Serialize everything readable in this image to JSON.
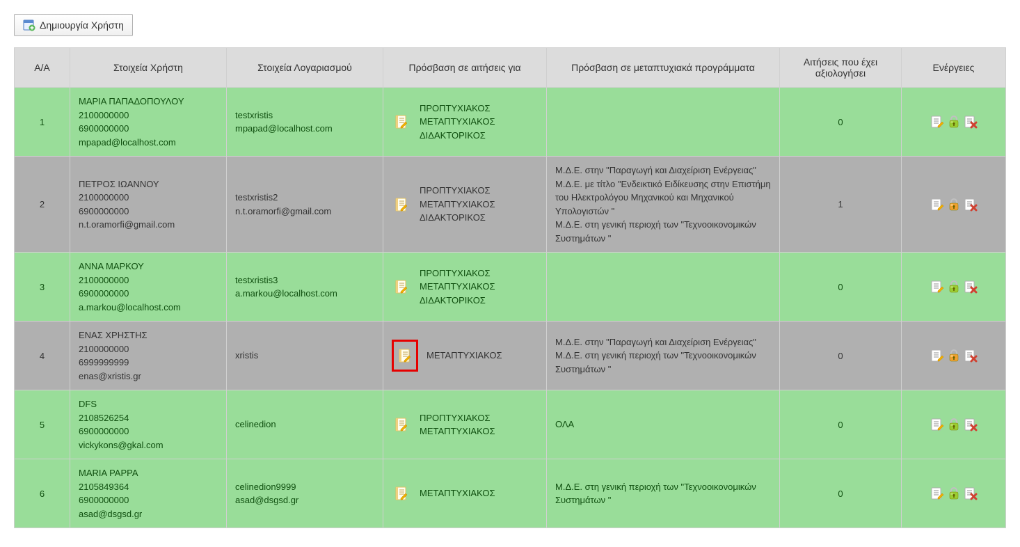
{
  "createButton": {
    "label": "Δημιουργία Χρήστη"
  },
  "columns": {
    "aa": "Α/Α",
    "user": "Στοιχεία Χρήστη",
    "account": "Στοιχεία Λογαριασμού",
    "access": "Πρόσβαση σε αιτήσεις για",
    "programs": "Πρόσβαση σε μεταπτυχιακά προγράμματα",
    "evaluated": "Αιτήσεις που έχει αξιολογήσει",
    "actions": "Ενέργειες"
  },
  "rows": [
    {
      "aa": "1",
      "rowClass": "row-green",
      "user": [
        "ΜΑΡΙΑ ΠΑΠΑΔΟΠΟΥΛΟΥ",
        "2100000000",
        "6900000000",
        "mpapad@localhost.com"
      ],
      "account": [
        "testxristis",
        "mpapad@localhost.com"
      ],
      "accessTypes": [
        "ΠΡΟΠΤΥΧΙΑΚΟΣ",
        "ΜΕΤΑΠΤΥΧΙΑΚΟΣ",
        "ΔΙΔΑΚΤΟΡΙΚΟΣ"
      ],
      "accessHighlighted": false,
      "programs": [],
      "evaluated": "0",
      "lockColor": "green"
    },
    {
      "aa": "2",
      "rowClass": "row-gray",
      "user": [
        "ΠΕΤΡΟΣ ΙΩΑΝΝΟΥ",
        "2100000000",
        "6900000000",
        "n.t.oramorfi@gmail.com"
      ],
      "account": [
        "testxristis2",
        "n.t.oramorfi@gmail.com"
      ],
      "accessTypes": [
        "ΠΡΟΠΤΥΧΙΑΚΟΣ",
        "ΜΕΤΑΠΤΥΧΙΑΚΟΣ",
        "ΔΙΔΑΚΤΟΡΙΚΟΣ"
      ],
      "accessHighlighted": false,
      "programs": [
        "Μ.Δ.Ε. στην \"Παραγωγή και Διαχείριση Ενέργειας\"",
        "Μ.Δ.Ε. με τίτλο \"Ενδεικτικό Ειδίκευσης στην Επιστήμη του Ηλεκτρολόγου Μηχανικού και Μηχανικού Υπολογιστών \"",
        "Μ.Δ.Ε. στη γενική περιοχή των \"Τεχνοοικονομικών Συστημάτων \""
      ],
      "evaluated": "1",
      "lockColor": "orange"
    },
    {
      "aa": "3",
      "rowClass": "row-green",
      "user": [
        "ΑΝΝΑ ΜΑΡΚΟΥ",
        "2100000000",
        "6900000000",
        "a.markou@localhost.com"
      ],
      "account": [
        "testxristis3",
        "a.markou@localhost.com"
      ],
      "accessTypes": [
        "ΠΡΟΠΤΥΧΙΑΚΟΣ",
        "ΜΕΤΑΠΤΥΧΙΑΚΟΣ",
        "ΔΙΔΑΚΤΟΡΙΚΟΣ"
      ],
      "accessHighlighted": false,
      "programs": [],
      "evaluated": "0",
      "lockColor": "green"
    },
    {
      "aa": "4",
      "rowClass": "row-gray",
      "user": [
        "ΕΝΑΣ ΧΡΗΣΤΗΣ",
        "2100000000",
        "6999999999",
        "enas@xristis.gr"
      ],
      "account": [
        "xristis"
      ],
      "accessTypes": [
        "ΜΕΤΑΠΤΥΧΙΑΚΟΣ"
      ],
      "accessHighlighted": true,
      "programs": [
        "Μ.Δ.Ε. στην \"Παραγωγή και Διαχείριση Ενέργειας\"",
        "Μ.Δ.Ε. στη γενική περιοχή των \"Τεχνοοικονομικών Συστημάτων \""
      ],
      "evaluated": "0",
      "lockColor": "orange"
    },
    {
      "aa": "5",
      "rowClass": "row-green",
      "user": [
        "DFS",
        "2108526254",
        "6900000000",
        "vickykons@gkal.com"
      ],
      "account": [
        "celinedion"
      ],
      "accessTypes": [
        "ΠΡΟΠΤΥΧΙΑΚΟΣ",
        "ΜΕΤΑΠΤΥΧΙΑΚΟΣ"
      ],
      "accessHighlighted": false,
      "programs": [
        "ΟΛΑ"
      ],
      "evaluated": "0",
      "lockColor": "green"
    },
    {
      "aa": "6",
      "rowClass": "row-green",
      "user": [
        "MARIA PAPPA",
        "2105849364",
        "6900000000",
        "asad@dsgsd.gr"
      ],
      "account": [
        "celinedion9999",
        "asad@dsgsd.gr"
      ],
      "accessTypes": [
        "ΜΕΤΑΠΤΥΧΙΑΚΟΣ"
      ],
      "accessHighlighted": false,
      "programs": [
        "Μ.Δ.Ε. στη γενική περιοχή των \"Τεχνοοικονομικών Συστημάτων \""
      ],
      "evaluated": "0",
      "lockColor": "green"
    }
  ],
  "colors": {
    "greenRow": "#99dd99",
    "grayRow": "#b0b0b0",
    "headerBg": "#dcdcdc",
    "border": "#d0d0d0",
    "highlightRed": "#e60000",
    "lockGreen": "#9acd32",
    "lockOrange": "#f0a030"
  }
}
